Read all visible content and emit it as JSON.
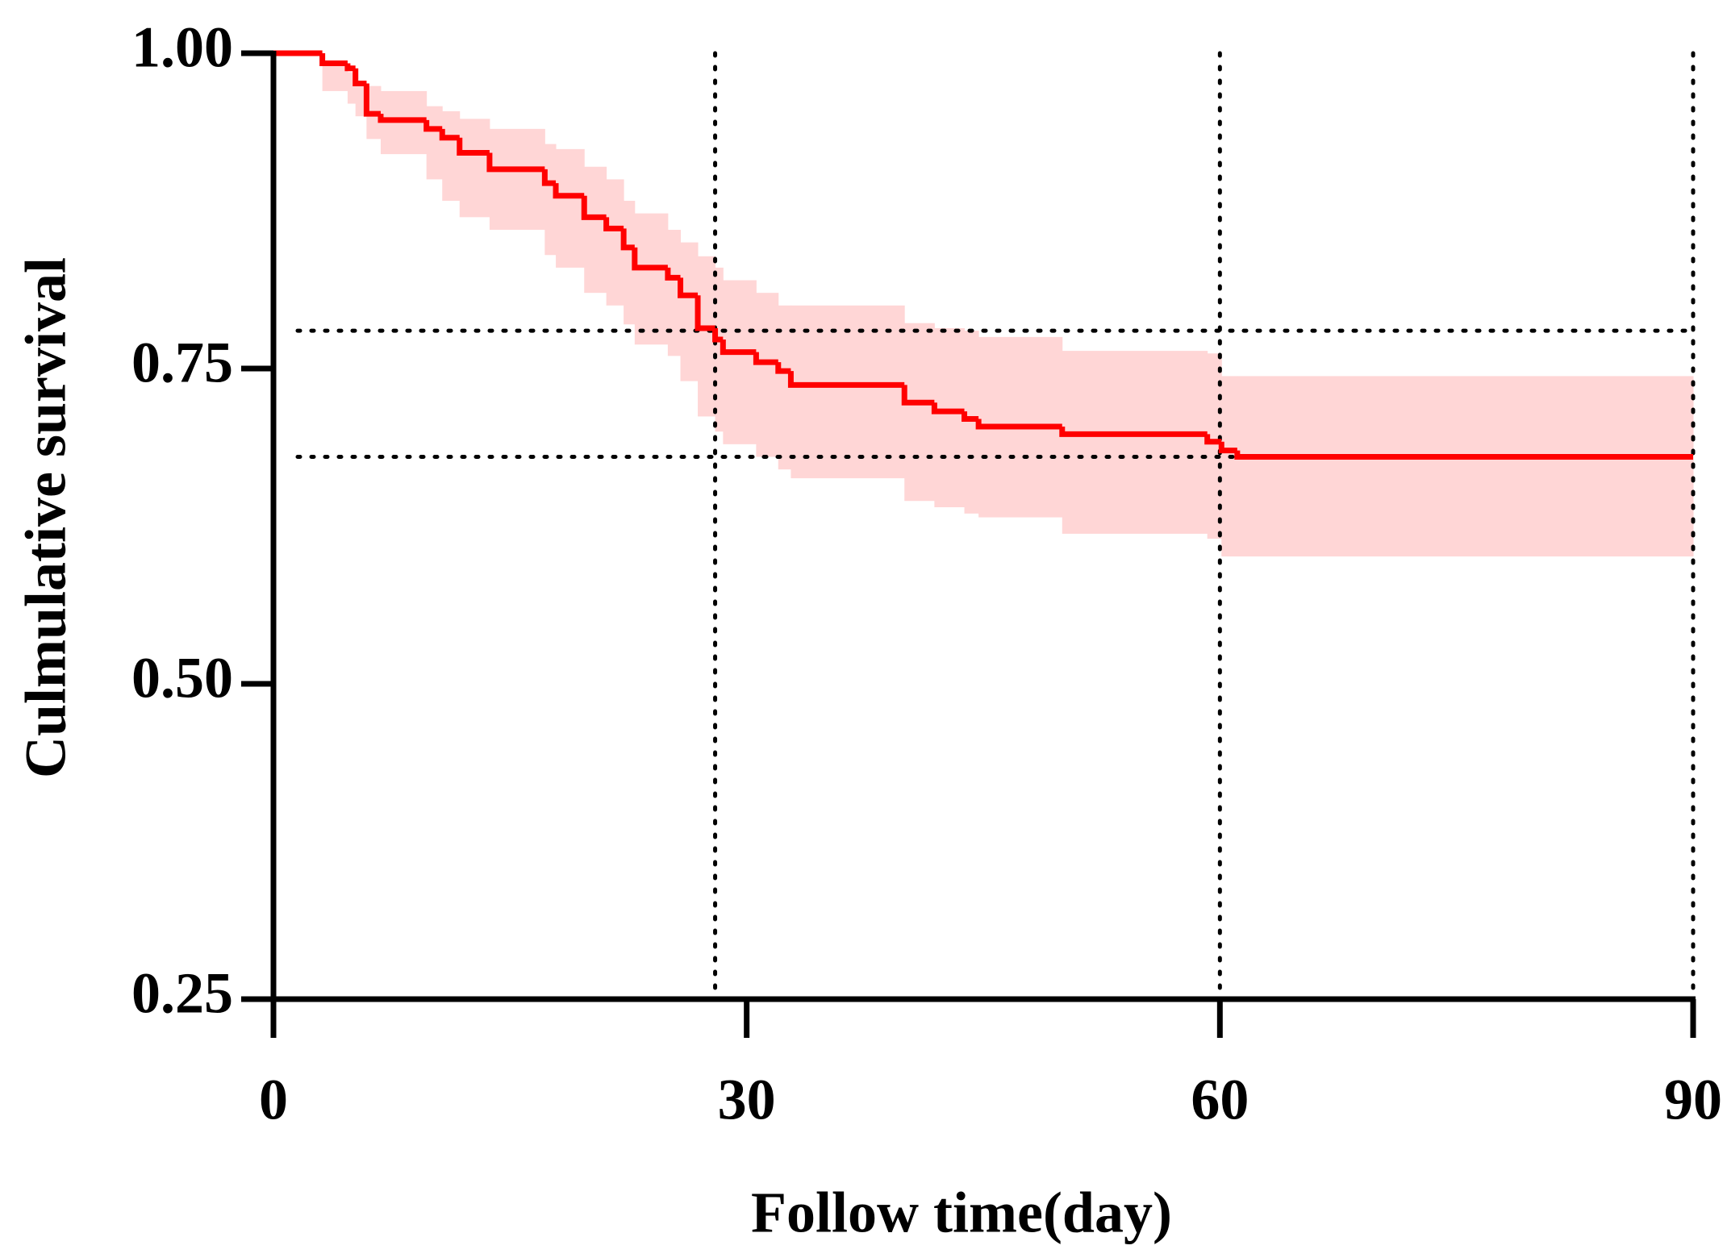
{
  "chart_data": {
    "type": "step",
    "xlabel": "Follow time(day)",
    "ylabel": "Culmulative survival",
    "x": [
      0,
      3.1,
      4.7,
      5.2,
      5.9,
      6.8,
      9.7,
      10.7,
      11.8,
      13.7,
      17.2,
      17.9,
      19.7,
      21.1,
      22.2,
      22.9,
      25,
      25.8,
      26.9,
      28,
      28.5,
      30.6,
      32,
      32.8,
      40,
      41.9,
      43.8,
      44.7,
      50,
      59.2,
      60.1,
      61.1,
      90
    ],
    "values": [
      1,
      0.992,
      0.988,
      0.976,
      0.952,
      0.947,
      0.94,
      0.933,
      0.921,
      0.908,
      0.897,
      0.887,
      0.87,
      0.861,
      0.846,
      0.83,
      0.822,
      0.808,
      0.782,
      0.773,
      0.763,
      0.755,
      0.748,
      0.737,
      0.723,
      0.716,
      0.71,
      0.704,
      0.698,
      0.692,
      0.685,
      0.68,
      0.68
    ],
    "upper": [
      1,
      0.99,
      0.985,
      0.978,
      0.974,
      0.97,
      0.958,
      0.954,
      0.948,
      0.94,
      0.928,
      0.924,
      0.91,
      0.9,
      0.883,
      0.873,
      0.86,
      0.85,
      0.839,
      0.83,
      0.82,
      0.81,
      0.8,
      0.8,
      0.786,
      0.782,
      0.78,
      0.775,
      0.764,
      0.762,
      0.744,
      0.744,
      0.744
    ],
    "lower": [
      1,
      0.97,
      0.96,
      0.95,
      0.932,
      0.92,
      0.9,
      0.883,
      0.87,
      0.86,
      0.84,
      0.83,
      0.81,
      0.8,
      0.785,
      0.769,
      0.76,
      0.74,
      0.712,
      0.7,
      0.69,
      0.68,
      0.67,
      0.663,
      0.645,
      0.64,
      0.635,
      0.632,
      0.619,
      0.615,
      0.601,
      0.601,
      0.601
    ],
    "color": "#ff0000",
    "band_color": "#ffd6d6",
    "reference_lines": {
      "x": [
        28,
        60,
        90
      ],
      "y": [
        0.78,
        0.68
      ],
      "color": "#000000"
    },
    "xlim": [
      0,
      90
    ],
    "xticks": [
      0,
      30,
      60,
      90
    ],
    "ylim": [
      0.25,
      1
    ],
    "yticks": [
      0.25,
      {
        "value": 0.5,
        "label": "0.50"
      },
      0.75,
      {
        "value": 1,
        "label": "1.00"
      }
    ]
  }
}
